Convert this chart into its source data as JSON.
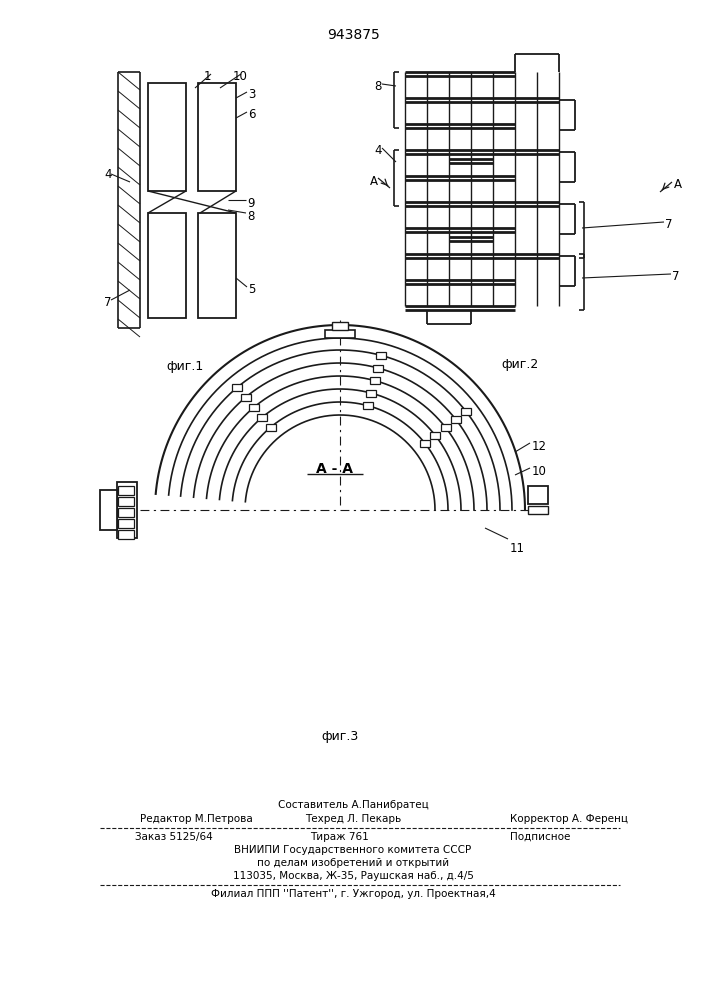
{
  "patent_number": "943875",
  "fig1_label": "фиг.1",
  "fig2_label": "фиг.2",
  "fig3_label": "фиг.3",
  "section_label": "A - A",
  "bg_color": "#ffffff",
  "lc": "#1a1a1a",
  "footer_composer": "Составитель А.Панибратец",
  "footer_editor": "Редактор М.Петрова",
  "footer_techred": "Техред Л. Пекарь",
  "footer_corrector": "Корректор А. Ференц",
  "footer_order": "Заказ 5125/64",
  "footer_tiraz": "Тираж 761",
  "footer_podp": "Подписное",
  "footer_org1": "ВНИИПИ Государственного комитета СССР",
  "footer_org2": "по делам изобретений и открытий",
  "footer_org3": "113035, Москва, Ж-35, Раушская наб., д.4/5",
  "footer_filial": "Филиал ППП ''Патент'', г. Ужгород, ул. Проектная,4"
}
